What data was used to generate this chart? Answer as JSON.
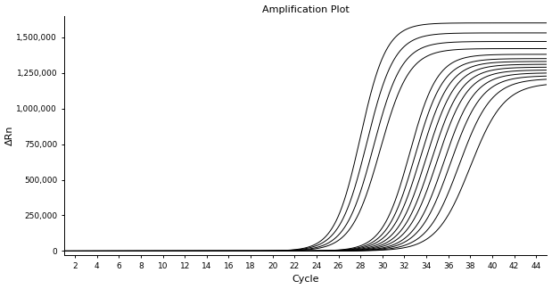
{
  "title": "Amplification Plot",
  "xlabel": "Cycle",
  "ylabel": "ΔRn",
  "xlim": [
    1,
    45
  ],
  "ylim": [
    -30000,
    1650000
  ],
  "xticks": [
    2,
    4,
    6,
    8,
    10,
    12,
    14,
    16,
    18,
    20,
    22,
    24,
    26,
    28,
    30,
    32,
    34,
    36,
    38,
    40,
    42,
    44
  ],
  "yticks": [
    0,
    250000,
    500000,
    750000,
    1000000,
    1250000,
    1500000
  ],
  "ytick_labels": [
    "0",
    "250,000",
    "500,000",
    "750,000",
    "1,000,000",
    "1,250,000",
    "1,500,000"
  ],
  "background_color": "#ffffff",
  "line_color": "#000000",
  "curves": [
    {
      "L": 1600000,
      "k": 0.85,
      "x0": 28.0
    },
    {
      "L": 1530000,
      "k": 0.8,
      "x0": 28.6
    },
    {
      "L": 1470000,
      "k": 0.78,
      "x0": 29.2
    },
    {
      "L": 1420000,
      "k": 0.76,
      "x0": 29.8
    },
    {
      "L": 1380000,
      "k": 0.8,
      "x0": 32.5
    },
    {
      "L": 1350000,
      "k": 0.78,
      "x0": 33.0
    },
    {
      "L": 1330000,
      "k": 0.76,
      "x0": 33.5
    },
    {
      "L": 1310000,
      "k": 0.75,
      "x0": 34.0
    },
    {
      "L": 1290000,
      "k": 0.74,
      "x0": 34.5
    },
    {
      "L": 1270000,
      "k": 0.73,
      "x0": 35.0
    },
    {
      "L": 1250000,
      "k": 0.72,
      "x0": 35.6
    },
    {
      "L": 1230000,
      "k": 0.7,
      "x0": 36.2
    },
    {
      "L": 1210000,
      "k": 0.68,
      "x0": 37.0
    },
    {
      "L": 1180000,
      "k": 0.65,
      "x0": 38.0
    }
  ]
}
